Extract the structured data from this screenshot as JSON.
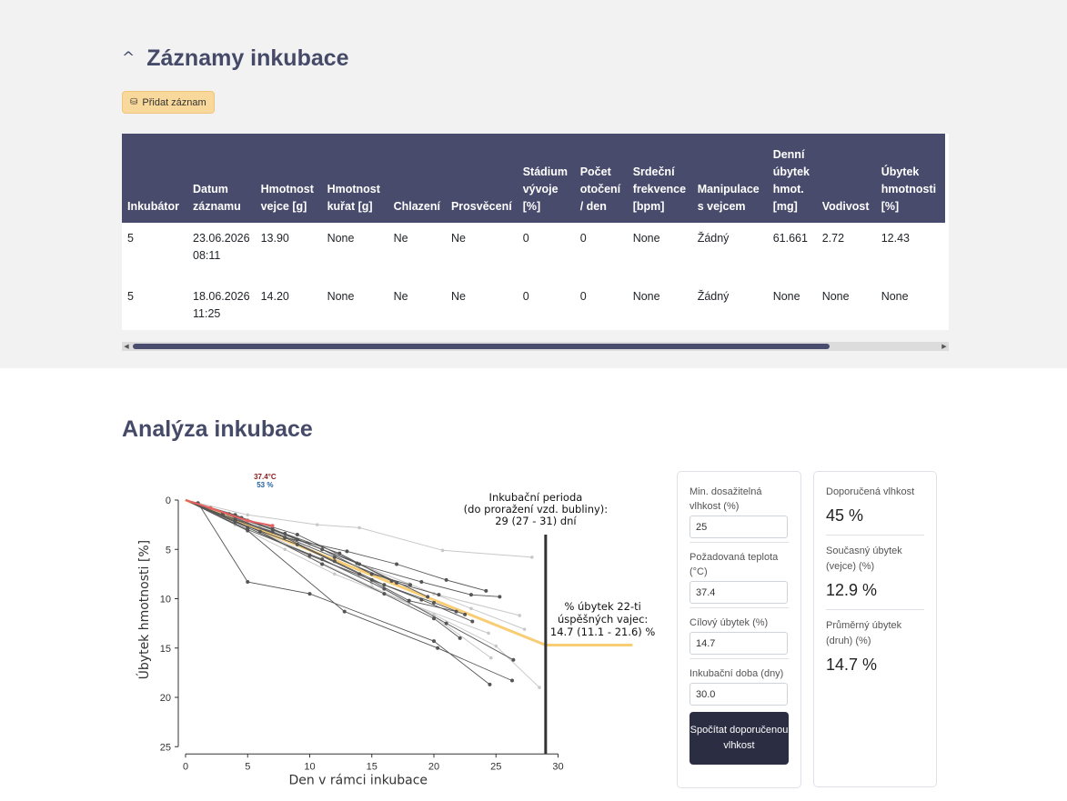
{
  "records": {
    "title": "Záznamy inkubace",
    "add_button": "Přidat záznam",
    "columns": [
      "Inkubátor",
      "Datum záznamu",
      "Hmotnost vejce [g]",
      "Hmotnost kuřat [g]",
      "Chlazení",
      "Prosvěcení",
      "Stádium vývoje [%]",
      "Počet otočení / den",
      "Srdeční frekvence [bpm]",
      "Manipulace s vejcem",
      "Denní úbytek hmot. [mg]",
      "Vodivost",
      "Úbytek hmotnosti [%]"
    ],
    "rows": [
      [
        "5",
        "23.06.2026 08:11",
        "13.90",
        "None",
        "Ne",
        "Ne",
        "0",
        "0",
        "None",
        "Žádný",
        "61.661",
        "2.72",
        "12.43"
      ],
      [
        "5",
        "18.06.2026 11:25",
        "14.20",
        "None",
        "Ne",
        "Ne",
        "0",
        "0",
        "None",
        "Žádný",
        "None",
        "None",
        "None"
      ]
    ]
  },
  "analysis": {
    "title": "Analýza inkubace",
    "chart_data": {
      "type": "line",
      "xlabel": "Den v rámci inkubace",
      "ylabel": "Úbytek hmotnosti [%]",
      "xlim": [
        0,
        30
      ],
      "ylim": [
        25,
        0
      ],
      "xticks": [
        0,
        5,
        10,
        15,
        20,
        25,
        30
      ],
      "yticks": [
        0,
        5,
        10,
        15,
        20,
        25
      ],
      "top_annotation_temp": "37.4°C",
      "top_annotation_humidity": "53 %",
      "period_label": [
        "Inkubační perioda",
        "(do proražení vzd. bubliny):",
        "29 (27 - 31) dní"
      ],
      "period_day": 29,
      "loss_label": [
        "% úbytek 22-ti",
        "úspěšných vajec:",
        "14.7 (11.1 - 21.6) %"
      ],
      "target_curve": {
        "x": [
          0,
          29,
          36
        ],
        "y": [
          0,
          14.7,
          14.7
        ]
      },
      "series": [
        {
          "x": [
            0,
            1,
            5,
            10,
            20,
            24.5
          ],
          "y": [
            0,
            0.3,
            8.3,
            9.5,
            14.3,
            18.7
          ]
        },
        {
          "x": [
            0,
            5,
            12.8,
            20.3,
            26.3
          ],
          "y": [
            0,
            3.1,
            11.3,
            15.0,
            18.3
          ]
        },
        {
          "x": [
            0,
            4,
            9,
            14,
            19,
            23,
            25.3
          ],
          "y": [
            0,
            1.5,
            4.0,
            6.5,
            8.3,
            9.6,
            9.8
          ]
        },
        {
          "x": [
            0,
            3,
            8,
            13,
            17,
            21,
            24.2
          ],
          "y": [
            0,
            1.3,
            3.8,
            5.2,
            6.5,
            8.1,
            9.2
          ]
        },
        {
          "x": [
            0,
            4,
            8,
            12,
            16,
            20,
            22.5
          ],
          "y": [
            0,
            2.0,
            3.8,
            6.2,
            8.6,
            10.4,
            11.6
          ]
        },
        {
          "x": [
            0,
            5,
            10,
            15,
            19,
            23.1
          ],
          "y": [
            0,
            2.8,
            5.6,
            8.1,
            10.1,
            12.3
          ]
        },
        {
          "x": [
            0,
            5,
            11,
            16,
            21,
            26.4
          ],
          "y": [
            0,
            3.0,
            6.0,
            9.0,
            12.5,
            16.2
          ]
        },
        {
          "x": [
            0,
            6,
            11,
            16,
            20,
            22.1
          ],
          "y": [
            0,
            3.2,
            6.5,
            9.5,
            12.0,
            14.0
          ]
        },
        {
          "x": [
            0,
            4,
            9,
            14,
            18,
            21.8
          ],
          "y": [
            0,
            2.2,
            4.5,
            7.5,
            10.2,
            11.3
          ]
        },
        {
          "x": [
            0,
            3,
            7,
            12,
            17,
            20.4
          ],
          "y": [
            0,
            1.5,
            3.2,
            5.8,
            8.4,
            9.6
          ]
        },
        {
          "x": [
            0,
            3.5,
            7,
            11,
            15,
            18.1
          ],
          "y": [
            0,
            1.4,
            2.9,
            5.0,
            7.5,
            8.6
          ]
        },
        {
          "x": [
            0,
            4,
            8,
            12.4,
            16.6
          ],
          "y": [
            0,
            1.7,
            3.4,
            5.4,
            8.2
          ]
        },
        {
          "x": [
            0,
            4.5,
            9,
            13.8,
            19.5
          ],
          "y": [
            0,
            1.8,
            3.5,
            6.4,
            9.8
          ]
        }
      ],
      "light_series": [
        {
          "x": [
            0,
            5,
            10.6,
            14,
            20.7,
            27.9
          ],
          "y": [
            0,
            1.5,
            2.5,
            2.8,
            5.1,
            5.8
          ]
        },
        {
          "x": [
            0,
            5,
            10,
            15,
            20,
            25,
            28.5
          ],
          "y": [
            0,
            2.8,
            5.8,
            8.8,
            11.6,
            14.8,
            19.0
          ]
        },
        {
          "x": [
            0,
            5,
            10,
            15,
            20,
            24.6
          ],
          "y": [
            0,
            2.6,
            5.5,
            8.4,
            11.8,
            16.0
          ]
        },
        {
          "x": [
            0,
            4,
            8,
            12,
            18,
            24.4
          ],
          "y": [
            0,
            2.5,
            5.0,
            7.5,
            10.5,
            13.5
          ]
        },
        {
          "x": [
            0,
            5,
            10,
            15,
            20,
            26.9
          ],
          "y": [
            0,
            2.0,
            4.5,
            7.0,
            9.5,
            11.7
          ]
        },
        {
          "x": [
            0,
            6,
            12,
            18,
            23,
            27.3
          ],
          "y": [
            0,
            2.6,
            5.5,
            8.5,
            11.0,
            13.1
          ]
        }
      ],
      "highlight_series": {
        "x": [
          0,
          2,
          5,
          7
        ],
        "y": [
          0,
          0.8,
          2.1,
          2.6
        ]
      }
    },
    "calc": {
      "min_humidity_label": "Min. dosažitelná vlhkost (%)",
      "min_humidity_value": "25",
      "temp_label": "Požadovaná teplota (°C)",
      "temp_value": "37.4",
      "target_loss_label": "Cílový úbytek (%)",
      "target_loss_value": "14.7",
      "period_label": "Inkubační doba (dny)",
      "period_value": "30.0",
      "button": "Spočítat doporučenou vlhkost"
    },
    "results": {
      "rec_humidity_label": "Doporučená vlhkost",
      "rec_humidity_value": "45 %",
      "current_loss_label": "Současný úbytek (vejce) (%)",
      "current_loss_value": "12.9 %",
      "avg_loss_label": "Průměrný úbytek (druh) (%)",
      "avg_loss_value": "14.7 %"
    }
  }
}
